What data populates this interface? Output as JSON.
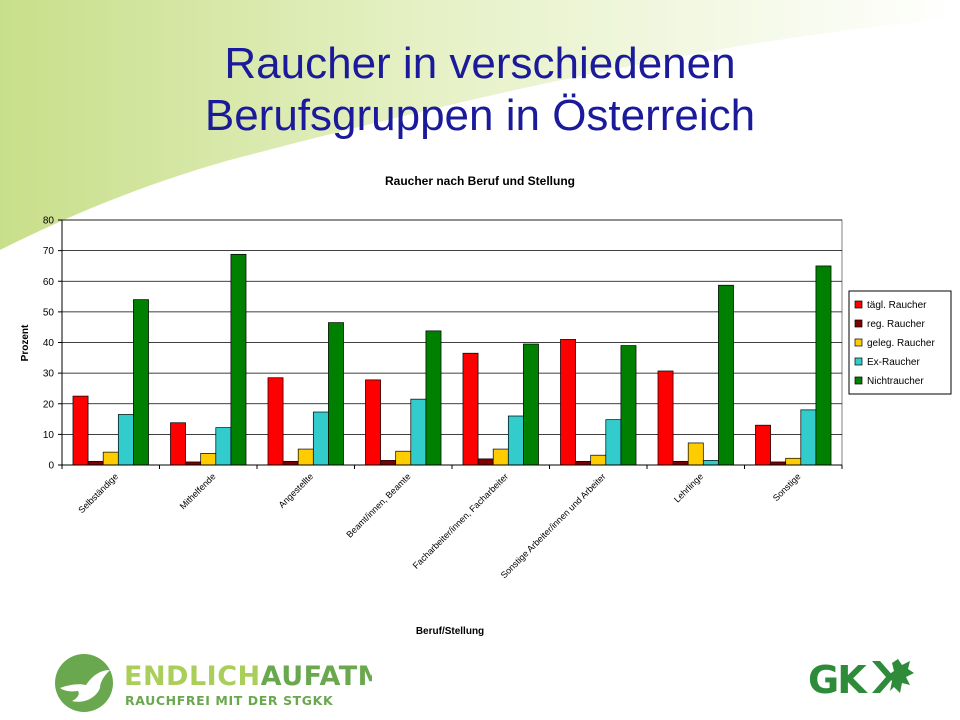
{
  "slide": {
    "title_line1": "Raucher in verschiedenen",
    "title_line2": "Berufsgruppen in Österreich"
  },
  "logo_left": {
    "word1": "ENDLICH",
    "word2": "AUFATMEN",
    "tagline": "RAUCHFREI MIT DER STGKK",
    "color_dark": "#6aa84f",
    "color_light": "#a9cf5a"
  },
  "logo_right": {
    "text": "GK"
  },
  "chart_data": {
    "type": "bar",
    "title": "Raucher nach Beruf und Stellung",
    "xlabel": "Beruf/Stellung",
    "ylabel": "Prozent",
    "ylim": [
      0,
      80
    ],
    "yticks": [
      0,
      10,
      20,
      30,
      40,
      50,
      60,
      70,
      80
    ],
    "grid": true,
    "legend_position": "right",
    "categories": [
      "Selbständige",
      "Mithelfende",
      "Angestellte",
      "Beamt/innen, Beamte",
      "Facharbeiter/innen, Facharbeiter",
      "Sonstige Arbeiter/innen und Arbeiter",
      "Lehrlinge",
      "Sonstige"
    ],
    "series": [
      {
        "name": "tägl. Raucher",
        "color": "#ff0000",
        "values": [
          22.5,
          13.8,
          28.5,
          27.8,
          36.5,
          41,
          30.7,
          13
        ]
      },
      {
        "name": "reg. Raucher",
        "color": "#800000",
        "values": [
          1.2,
          1,
          1.2,
          1.5,
          2,
          1.2,
          1.2,
          1
        ]
      },
      {
        "name": "geleg. Raucher",
        "color": "#ffcc00",
        "values": [
          4.2,
          3.8,
          5.2,
          4.5,
          5.2,
          3.2,
          7.2,
          2.2
        ]
      },
      {
        "name": "Ex-Raucher",
        "color": "#33cccc",
        "values": [
          16.5,
          12.2,
          17.3,
          21.5,
          16,
          14.8,
          1.5,
          18
        ]
      },
      {
        "name": "Nichtraucher",
        "color": "#008000",
        "values": [
          54,
          68.8,
          46.5,
          43.8,
          39.5,
          39,
          58.7,
          65
        ]
      }
    ]
  }
}
